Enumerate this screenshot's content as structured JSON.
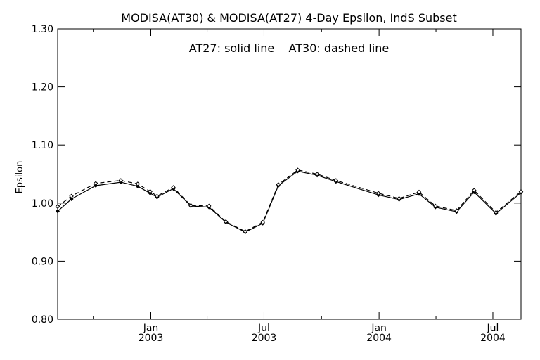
{
  "chart_data": {
    "type": "line",
    "title": "MODISA(AT30) & MODISA(AT27) 4-Day Epsilon, IndS Subset",
    "annotation": "AT27: solid line    AT30: dashed line",
    "ylabel": "Epsilon",
    "xlabel": "",
    "ylim": [
      0.8,
      1.3
    ],
    "xlim": [
      "2002-08-05",
      "2004-08-15"
    ],
    "grid": false,
    "yticks": [
      {
        "value": 0.8,
        "label": "0.80"
      },
      {
        "value": 0.9,
        "label": "0.90"
      },
      {
        "value": 1.0,
        "label": "1.00"
      },
      {
        "value": 1.1,
        "label": "1.10"
      },
      {
        "value": 1.2,
        "label": "1.20"
      },
      {
        "value": 1.3,
        "label": "1.30"
      }
    ],
    "xticks_major": [
      {
        "date": "2003-01-01",
        "month": "Jan",
        "year": "2003"
      },
      {
        "date": "2003-07-01",
        "month": "Jul",
        "year": "2003"
      },
      {
        "date": "2004-01-01",
        "month": "Jan",
        "year": "2004"
      },
      {
        "date": "2004-07-01",
        "month": "Jul",
        "year": "2004"
      }
    ],
    "xticks_minor": [
      "2002-10-01",
      "2003-04-01",
      "2003-10-01",
      "2004-04-01"
    ],
    "series": [
      {
        "name": "AT27",
        "style": "solid",
        "points": [
          {
            "x": "2002-08-05",
            "y": 0.986
          },
          {
            "x": "2002-08-27",
            "y": 1.007
          },
          {
            "x": "2002-10-05",
            "y": 1.03
          },
          {
            "x": "2002-11-14",
            "y": 1.036
          },
          {
            "x": "2002-12-11",
            "y": 1.029
          },
          {
            "x": "2002-12-31",
            "y": 1.017
          },
          {
            "x": "2003-01-11",
            "y": 1.01
          },
          {
            "x": "2003-02-06",
            "y": 1.025
          },
          {
            "x": "2003-03-06",
            "y": 0.995
          },
          {
            "x": "2003-04-04",
            "y": 0.993
          },
          {
            "x": "2003-05-01",
            "y": 0.967
          },
          {
            "x": "2003-06-01",
            "y": 0.95
          },
          {
            "x": "2003-06-29",
            "y": 0.965
          },
          {
            "x": "2003-07-24",
            "y": 1.03
          },
          {
            "x": "2003-08-24",
            "y": 1.055
          },
          {
            "x": "2003-09-24",
            "y": 1.048
          },
          {
            "x": "2003-10-24",
            "y": 1.037
          },
          {
            "x": "2003-12-31",
            "y": 1.014
          },
          {
            "x": "2004-02-02",
            "y": 1.006
          },
          {
            "x": "2004-03-05",
            "y": 1.016
          },
          {
            "x": "2004-03-31",
            "y": 0.993
          },
          {
            "x": "2004-05-04",
            "y": 0.985
          },
          {
            "x": "2004-06-01",
            "y": 1.019
          },
          {
            "x": "2004-07-06",
            "y": 0.982
          },
          {
            "x": "2004-08-15",
            "y": 1.018
          }
        ]
      },
      {
        "name": "AT30",
        "style": "dashed",
        "points": [
          {
            "x": "2002-08-05",
            "y": 0.994
          },
          {
            "x": "2002-08-27",
            "y": 1.012
          },
          {
            "x": "2002-10-05",
            "y": 1.034
          },
          {
            "x": "2002-11-14",
            "y": 1.039
          },
          {
            "x": "2002-12-11",
            "y": 1.033
          },
          {
            "x": "2002-12-31",
            "y": 1.02
          },
          {
            "x": "2003-01-11",
            "y": 1.012
          },
          {
            "x": "2003-02-06",
            "y": 1.027
          },
          {
            "x": "2003-03-06",
            "y": 0.996
          },
          {
            "x": "2003-04-04",
            "y": 0.995
          },
          {
            "x": "2003-05-01",
            "y": 0.968
          },
          {
            "x": "2003-06-01",
            "y": 0.951
          },
          {
            "x": "2003-06-29",
            "y": 0.967
          },
          {
            "x": "2003-07-24",
            "y": 1.032
          },
          {
            "x": "2003-08-24",
            "y": 1.057
          },
          {
            "x": "2003-09-24",
            "y": 1.05
          },
          {
            "x": "2003-10-24",
            "y": 1.039
          },
          {
            "x": "2003-12-31",
            "y": 1.017
          },
          {
            "x": "2004-02-02",
            "y": 1.008
          },
          {
            "x": "2004-03-05",
            "y": 1.019
          },
          {
            "x": "2004-03-31",
            "y": 0.995
          },
          {
            "x": "2004-05-04",
            "y": 0.987
          },
          {
            "x": "2004-06-01",
            "y": 1.022
          },
          {
            "x": "2004-07-06",
            "y": 0.984
          },
          {
            "x": "2004-08-15",
            "y": 1.02
          }
        ]
      }
    ]
  }
}
